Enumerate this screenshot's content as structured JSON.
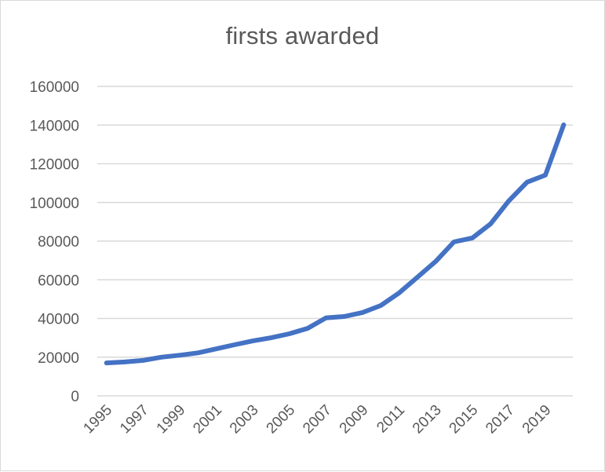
{
  "chart_data": {
    "type": "line",
    "title": "firsts awarded",
    "xlabel": "",
    "ylabel": "",
    "ylim": [
      0,
      160000
    ],
    "yticks": [
      0,
      20000,
      40000,
      60000,
      80000,
      100000,
      120000,
      140000,
      160000
    ],
    "xtick_labels": [
      "1995",
      "1997",
      "1999",
      "2001",
      "2003",
      "2005",
      "2007",
      "2009",
      "2011",
      "2013",
      "2015",
      "2017",
      "2019"
    ],
    "grid": true,
    "legend": null,
    "x": [
      1995,
      1996,
      1997,
      1998,
      1999,
      2000,
      2001,
      2002,
      2003,
      2004,
      2005,
      2006,
      2007,
      2008,
      2009,
      2010,
      2011,
      2012,
      2013,
      2014,
      2015,
      2016,
      2017,
      2018,
      2019,
      2020
    ],
    "series": [
      {
        "name": "firsts awarded",
        "color": "#4472c4",
        "values": [
          17000,
          17500,
          18300,
          20000,
          21000,
          22200,
          24300,
          26400,
          28400,
          30000,
          32100,
          34900,
          40300,
          41000,
          43100,
          46700,
          53200,
          61300,
          69500,
          79600,
          81600,
          88900,
          100800,
          110500,
          114100,
          140100
        ]
      }
    ]
  },
  "colors": {
    "line": "#4472c4",
    "grid": "#d9d9d9",
    "text": "#595959",
    "border": "#d9d9d9"
  }
}
